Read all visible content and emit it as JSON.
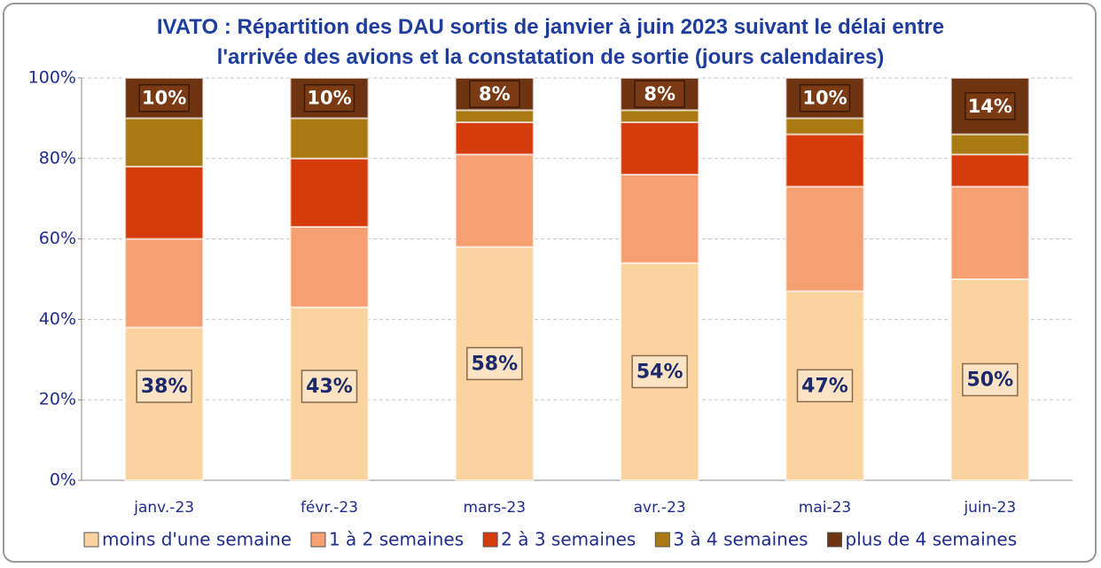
{
  "chart_data": {
    "type": "stacked_bar",
    "title": "IVATO : Répartition des DAU sortis de janvier à juin 2023 suivant le délai entre l'arrivée des avions et la constatation de sortie (jours calendaires)",
    "categories": [
      "janv.-23",
      "févr.-23",
      "mars-23",
      "avr.-23",
      "mai-23",
      "juin-23"
    ],
    "series": [
      {
        "name": "moins d'une semaine",
        "color": "#fbd39e",
        "values": [
          38,
          43,
          58,
          54,
          47,
          50
        ],
        "value_labels": [
          "38%",
          "43%",
          "58%",
          "54%",
          "47%",
          "50%"
        ]
      },
      {
        "name": "1 à 2 semaines",
        "color": "#f6a071",
        "values": [
          22,
          20,
          23,
          22,
          26,
          23
        ]
      },
      {
        "name": "2 à 3 semaines",
        "color": "#d63c0b",
        "values": [
          18,
          17,
          8,
          13,
          13,
          8
        ]
      },
      {
        "name": "3 à 4 semaines",
        "color": "#a97a12",
        "values": [
          12,
          10,
          3,
          3,
          4,
          5
        ]
      },
      {
        "name": "plus de 4 semaines",
        "color": "#6e3411",
        "values": [
          10,
          10,
          8,
          8,
          10,
          14
        ],
        "value_labels": [
          "10%",
          "10%",
          "8%",
          "8%",
          "10%",
          "14%"
        ]
      }
    ],
    "ylim": [
      0,
      100
    ],
    "yticks": [
      {
        "value": 0,
        "label": "0%"
      },
      {
        "value": 20,
        "label": "20%"
      },
      {
        "value": 40,
        "label": "40%"
      },
      {
        "value": 60,
        "label": "60%"
      },
      {
        "value": 80,
        "label": "80%"
      },
      {
        "value": 100,
        "label": "100%"
      }
    ],
    "grid": true,
    "legend": "bottom"
  }
}
